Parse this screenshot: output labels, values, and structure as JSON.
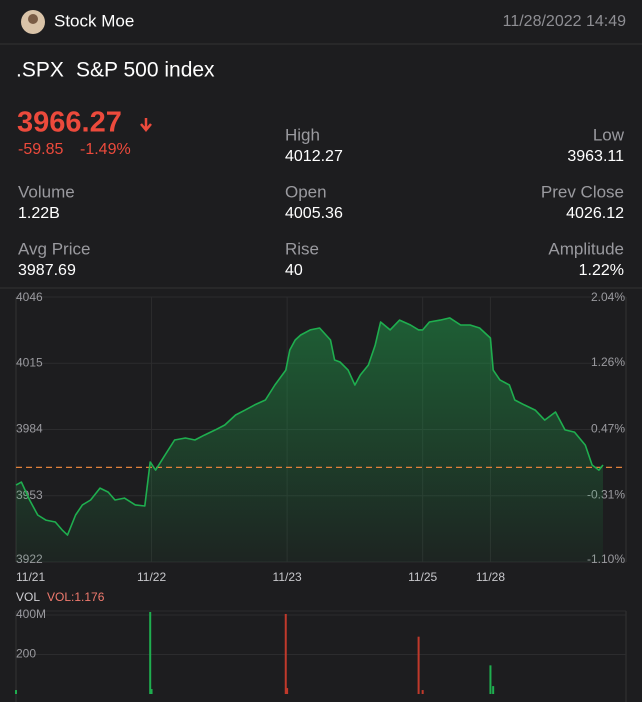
{
  "header": {
    "user": "Stock Moe",
    "datetime": "11/28/2022 14:49"
  },
  "quote": {
    "symbol": ".SPX",
    "name": "S&P 500 index",
    "price": "3966.27",
    "change": "-59.85",
    "change_pct": "-1.49%",
    "stats": [
      {
        "label": "High",
        "value": "4012.27"
      },
      {
        "label": "Low",
        "value": "3963.11"
      },
      {
        "label": "Volume",
        "value": "1.22B"
      },
      {
        "label": "Open",
        "value": "4005.36"
      },
      {
        "label": "Prev Close",
        "value": "4026.12"
      },
      {
        "label": "Avg Price",
        "value": "3987.69"
      },
      {
        "label": "Rise",
        "value": "40"
      },
      {
        "label": "Amplitude",
        "value": "1.22%"
      }
    ]
  },
  "chart_data": [
    {
      "type": "line",
      "color": "#1fae4f",
      "ref_line": 3966.27,
      "ref_color": "#e0803a",
      "x": [
        0,
        0.04,
        0.1,
        0.16,
        0.22,
        0.29,
        0.34,
        0.38,
        0.44,
        0.49,
        0.55,
        0.62,
        0.68,
        0.73,
        0.8,
        0.88,
        0.95,
        0.99,
        1.03,
        1.1,
        1.17,
        1.25,
        1.32,
        1.39,
        1.47,
        1.54,
        1.62,
        1.69,
        1.76,
        1.84,
        1.91,
        1.99,
        2.02,
        2.06,
        2.1,
        2.17,
        2.24,
        2.32,
        2.35,
        2.39,
        2.45,
        2.5,
        2.54,
        2.6,
        2.65,
        2.69,
        2.76,
        2.83,
        2.91,
        2.97,
        3.0,
        3.05,
        3.13,
        3.2,
        3.28,
        3.35,
        3.42,
        3.5,
        3.52,
        3.57,
        3.64,
        3.68,
        3.75,
        3.83,
        3.9,
        3.98,
        4.05,
        4.12,
        4.2,
        4.25,
        4.3,
        4.33
      ],
      "values": [
        3958.0,
        3959.4,
        3951.0,
        3944.0,
        3941.6,
        3940.7,
        3937.0,
        3934.6,
        3944.0,
        3948.7,
        3951.0,
        3956.6,
        3954.7,
        3951.0,
        3951.9,
        3948.7,
        3948.2,
        3968.8,
        3965.0,
        3972.1,
        3979.1,
        3980.0,
        3979.1,
        3981.4,
        3983.8,
        3986.1,
        3990.8,
        3993.1,
        3995.5,
        3997.8,
        4004.8,
        4011.8,
        4021.2,
        4025.9,
        4028.2,
        4030.6,
        4031.5,
        4025.9,
        4016.5,
        4015.6,
        4011.8,
        4004.8,
        4009.5,
        4014.2,
        4023.5,
        4034.3,
        4030.6,
        4035.2,
        4032.9,
        4030.6,
        4030.6,
        4034.3,
        4035.2,
        4036.2,
        4032.9,
        4032.9,
        4031.5,
        4026.8,
        4011.8,
        4007.2,
        4004.8,
        3997.8,
        3995.5,
        3993.1,
        3988.4,
        3992.2,
        3983.8,
        3982.8,
        3976.7,
        3967.4,
        3965.0,
        3967.4
      ],
      "xlim": [
        0,
        4.5
      ],
      "xticks": [
        {
          "value": 0,
          "label": "11/21"
        },
        {
          "value": 1,
          "label": "11/22"
        },
        {
          "value": 2,
          "label": "11/23"
        },
        {
          "value": 3,
          "label": "11/25"
        },
        {
          "value": 3.5,
          "label": "11/28"
        }
      ],
      "ylim": [
        3922,
        4046
      ],
      "yticks": [
        4046,
        4015,
        3984,
        3953,
        3922
      ],
      "y2lim": [
        -1.1,
        2.04
      ],
      "y2ticks": [
        {
          "value": 2.04,
          "label": "2.04%"
        },
        {
          "value": 1.26,
          "label": "1.26%"
        },
        {
          "value": 0.47,
          "label": "0.47%"
        },
        {
          "value": -0.31,
          "label": "-0.31%"
        },
        {
          "value": -1.1,
          "label": "-1.10%"
        }
      ]
    },
    {
      "type": "bar",
      "title": "VOL",
      "subtitle": "VOL:1.176",
      "x": [
        0,
        0.99,
        1.0,
        1.99,
        2.0,
        2.97,
        3.0,
        3.5,
        3.52
      ],
      "values": [
        20,
        415,
        25,
        405,
        30,
        290,
        20,
        145,
        40
      ],
      "colors": [
        "#1fae4f",
        "#1fae4f",
        "#1fae4f",
        "#c0392b",
        "#c0392b",
        "#c0392b",
        "#c0392b",
        "#1fae4f",
        "#1fae4f"
      ],
      "xlim": [
        0,
        4.5
      ],
      "ylim": [
        0,
        420
      ],
      "yticks": [
        {
          "value": 400,
          "label": "400M"
        },
        200
      ]
    }
  ]
}
